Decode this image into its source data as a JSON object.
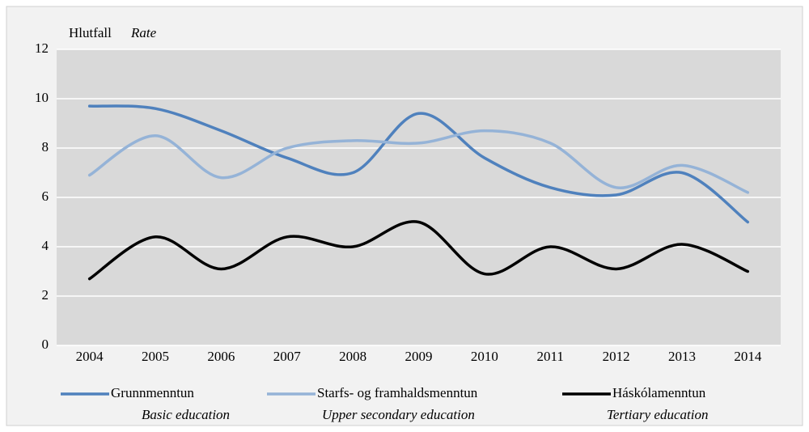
{
  "chart_data": {
    "type": "line",
    "ylabel": "Hlutfall",
    "ylabel_en": "Rate",
    "categories": [
      "2004",
      "2005",
      "2006",
      "2007",
      "2008",
      "2009",
      "2010",
      "2011",
      "2012",
      "2013",
      "2014"
    ],
    "series": [
      {
        "name": "Grunnmenntun",
        "subtitle": "Basic education",
        "color": "#4f81bd",
        "values": [
          9.7,
          9.6,
          8.7,
          7.6,
          7.0,
          9.4,
          7.6,
          6.4,
          6.1,
          7.0,
          5.0
        ]
      },
      {
        "name": "Starfs- og framhaldsmenntun",
        "subtitle": "Upper secondary education",
        "color": "#95b3d7",
        "values": [
          6.9,
          8.5,
          6.8,
          8.0,
          8.3,
          8.2,
          8.7,
          8.2,
          6.4,
          7.3,
          6.2
        ]
      },
      {
        "name": "Háskólamenntun",
        "subtitle": "Tertiary education",
        "color": "#000000",
        "values": [
          2.7,
          4.4,
          3.1,
          4.4,
          4.0,
          5.0,
          2.9,
          4.0,
          3.1,
          4.1,
          3.0
        ]
      }
    ],
    "ylim": [
      0,
      12
    ],
    "yticks": [
      0,
      2,
      4,
      6,
      8,
      10,
      12
    ],
    "grid": true,
    "smooth": true
  }
}
